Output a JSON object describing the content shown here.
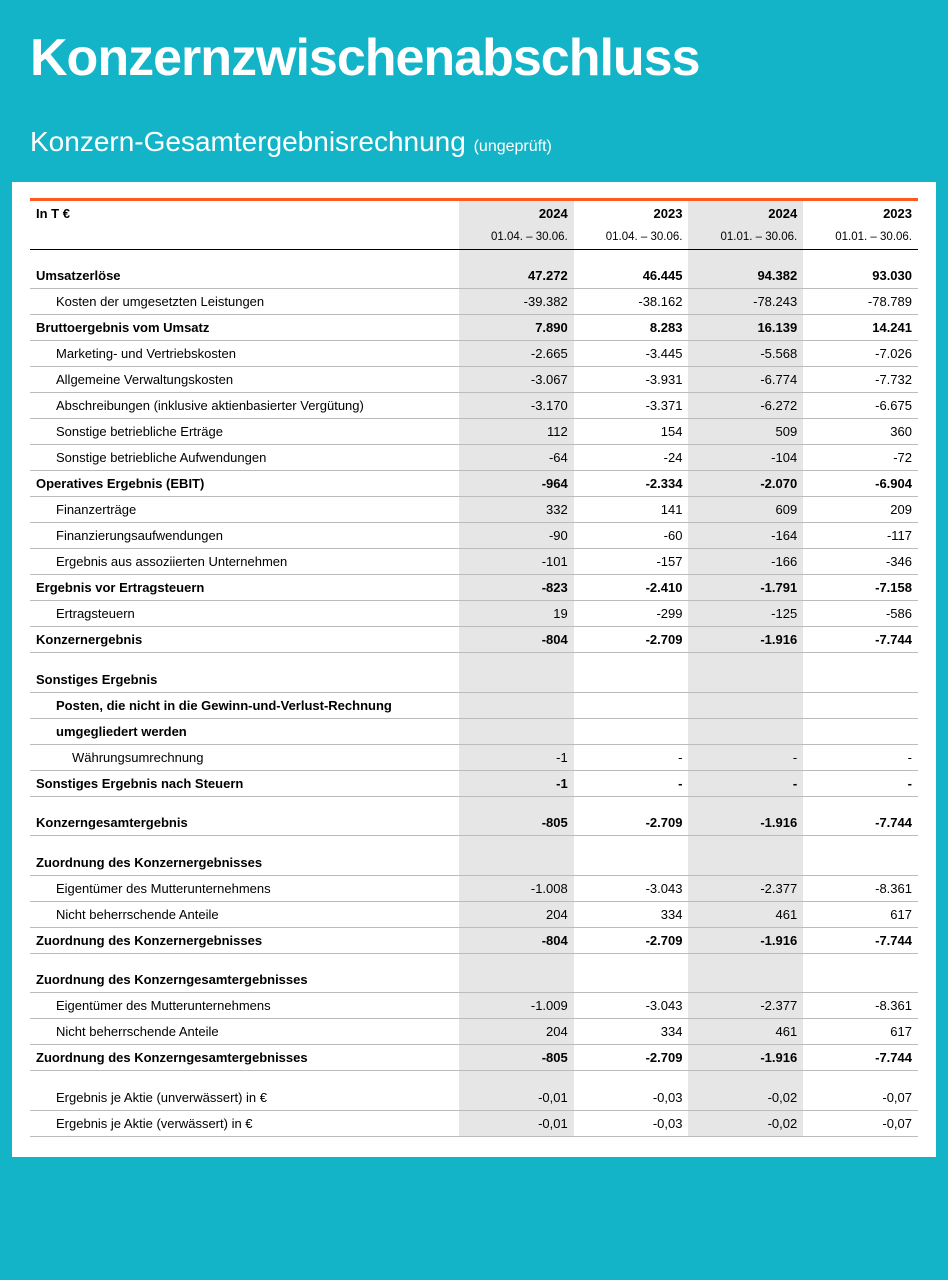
{
  "header": {
    "title": "Konzernzwischenabschluss",
    "subtitle": "Konzern-Gesamtergebnisrechnung",
    "note": "(ungeprüft)"
  },
  "table": {
    "unit_label": "In T €",
    "columns": [
      {
        "year": "2024",
        "period": "01.04. – 30.06.",
        "shade": true
      },
      {
        "year": "2023",
        "period": "01.04. – 30.06.",
        "shade": false
      },
      {
        "year": "2024",
        "period": "01.01. – 30.06.",
        "shade": true
      },
      {
        "year": "2023",
        "period": "01.01. – 30.06.",
        "shade": false
      }
    ],
    "rows": [
      {
        "type": "data",
        "bold": true,
        "indent": 0,
        "first": true,
        "label": "Umsatzerlöse",
        "v": [
          "47.272",
          "46.445",
          "94.382",
          "93.030"
        ]
      },
      {
        "type": "data",
        "bold": false,
        "indent": 1,
        "label": "Kosten der umgesetzten Leistungen",
        "v": [
          "-39.382",
          "-38.162",
          "-78.243",
          "-78.789"
        ]
      },
      {
        "type": "data",
        "bold": true,
        "indent": 0,
        "label": "Bruttoergebnis vom Umsatz",
        "v": [
          "7.890",
          "8.283",
          "16.139",
          "14.241"
        ]
      },
      {
        "type": "data",
        "bold": false,
        "indent": 1,
        "label": "Marketing- und Vertriebskosten",
        "v": [
          "-2.665",
          "-3.445",
          "-5.568",
          "-7.026"
        ]
      },
      {
        "type": "data",
        "bold": false,
        "indent": 1,
        "label": "Allgemeine Verwaltungskosten",
        "v": [
          "-3.067",
          "-3.931",
          "-6.774",
          "-7.732"
        ]
      },
      {
        "type": "data",
        "bold": false,
        "indent": 1,
        "label": "Abschreibungen (inklusive aktienbasierter Vergütung)",
        "v": [
          "-3.170",
          "-3.371",
          "-6.272",
          "-6.675"
        ]
      },
      {
        "type": "data",
        "bold": false,
        "indent": 1,
        "label": "Sonstige betriebliche Erträge",
        "v": [
          "112",
          "154",
          "509",
          "360"
        ]
      },
      {
        "type": "data",
        "bold": false,
        "indent": 1,
        "label": "Sonstige betriebliche Aufwendungen",
        "v": [
          "-64",
          "-24",
          "-104",
          "-72"
        ]
      },
      {
        "type": "data",
        "bold": true,
        "indent": 0,
        "label": "Operatives Ergebnis (EBIT)",
        "v": [
          "-964",
          "-2.334",
          "-2.070",
          "-6.904"
        ]
      },
      {
        "type": "data",
        "bold": false,
        "indent": 1,
        "label": "Finanzerträge",
        "v": [
          "332",
          "141",
          "609",
          "209"
        ]
      },
      {
        "type": "data",
        "bold": false,
        "indent": 1,
        "label": "Finanzierungsaufwendungen",
        "v": [
          "-90",
          "-60",
          "-164",
          "-117"
        ]
      },
      {
        "type": "data",
        "bold": false,
        "indent": 1,
        "label": "Ergebnis aus assoziierten Unternehmen",
        "v": [
          "-101",
          "-157",
          "-166",
          "-346"
        ]
      },
      {
        "type": "data",
        "bold": true,
        "indent": 0,
        "label": "Ergebnis vor Ertragsteuern",
        "v": [
          "-823",
          "-2.410",
          "-1.791",
          "-7.158"
        ]
      },
      {
        "type": "data",
        "bold": false,
        "indent": 1,
        "label": "Ertragsteuern",
        "v": [
          "19",
          "-299",
          "-125",
          "-586"
        ]
      },
      {
        "type": "data",
        "bold": true,
        "indent": 0,
        "label": "Konzernergebnis",
        "v": [
          "-804",
          "-2.709",
          "-1.916",
          "-7.744"
        ]
      },
      {
        "type": "spacer"
      },
      {
        "type": "section",
        "label": "Sonstiges Ergebnis"
      },
      {
        "type": "data",
        "bold": true,
        "indent": 1,
        "label": "Posten, die nicht in die Gewinn-und-Verlust-Rechnung",
        "v": [
          "",
          "",
          "",
          ""
        ]
      },
      {
        "type": "data",
        "bold": true,
        "indent": 1,
        "label": "umgegliedert werden",
        "v": [
          "",
          "",
          "",
          ""
        ]
      },
      {
        "type": "data",
        "bold": false,
        "indent": 2,
        "label": "Währungsumrechnung",
        "v": [
          "-1",
          "-",
          "-",
          "-"
        ]
      },
      {
        "type": "data",
        "bold": true,
        "indent": 0,
        "label": "Sonstiges Ergebnis nach Steuern",
        "v": [
          "-1",
          "-",
          "-",
          "-"
        ]
      },
      {
        "type": "spacer"
      },
      {
        "type": "data",
        "bold": true,
        "indent": 0,
        "label": "Konzerngesamtergebnis",
        "v": [
          "-805",
          "-2.709",
          "-1.916",
          "-7.744"
        ]
      },
      {
        "type": "spacer"
      },
      {
        "type": "section",
        "label": "Zuordnung des Konzernergebnisses"
      },
      {
        "type": "data",
        "bold": false,
        "indent": 1,
        "label": "Eigentümer des Mutterunternehmens",
        "v": [
          "-1.008",
          "-3.043",
          "-2.377",
          "-8.361"
        ]
      },
      {
        "type": "data",
        "bold": false,
        "indent": 1,
        "label": "Nicht beherrschende Anteile",
        "v": [
          "204",
          "334",
          "461",
          "617"
        ]
      },
      {
        "type": "data",
        "bold": true,
        "indent": 0,
        "label": "Zuordnung des Konzernergebnisses",
        "v": [
          "-804",
          "-2.709",
          "-1.916",
          "-7.744"
        ]
      },
      {
        "type": "spacer"
      },
      {
        "type": "section",
        "label": "Zuordnung des Konzerngesamtergebnisses"
      },
      {
        "type": "data",
        "bold": false,
        "indent": 1,
        "label": "Eigentümer des Mutterunternehmens",
        "v": [
          "-1.009",
          "-3.043",
          "-2.377",
          "-8.361"
        ]
      },
      {
        "type": "data",
        "bold": false,
        "indent": 1,
        "label": "Nicht beherrschende Anteile",
        "v": [
          "204",
          "334",
          "461",
          "617"
        ]
      },
      {
        "type": "data",
        "bold": true,
        "indent": 0,
        "label": "Zuordnung des Konzerngesamtergebnisses",
        "v": [
          "-805",
          "-2.709",
          "-1.916",
          "-7.744"
        ]
      },
      {
        "type": "spacer"
      },
      {
        "type": "data",
        "bold": false,
        "indent": 1,
        "label": "Ergebnis je Aktie (unverwässert) in €",
        "v": [
          "-0,01",
          "-0,03",
          "-0,02",
          "-0,07"
        ]
      },
      {
        "type": "data",
        "bold": false,
        "indent": 1,
        "label": "Ergebnis je Aktie (verwässert) in €",
        "v": [
          "-0,01",
          "-0,03",
          "-0,02",
          "-0,07"
        ]
      }
    ]
  },
  "colors": {
    "page_bg": "#14b4c8",
    "accent_rule": "#ff5a1f",
    "shade_bg": "#e6e6e6",
    "border": "#bbbbbb",
    "text": "#000000",
    "header_text": "#ffffff"
  }
}
